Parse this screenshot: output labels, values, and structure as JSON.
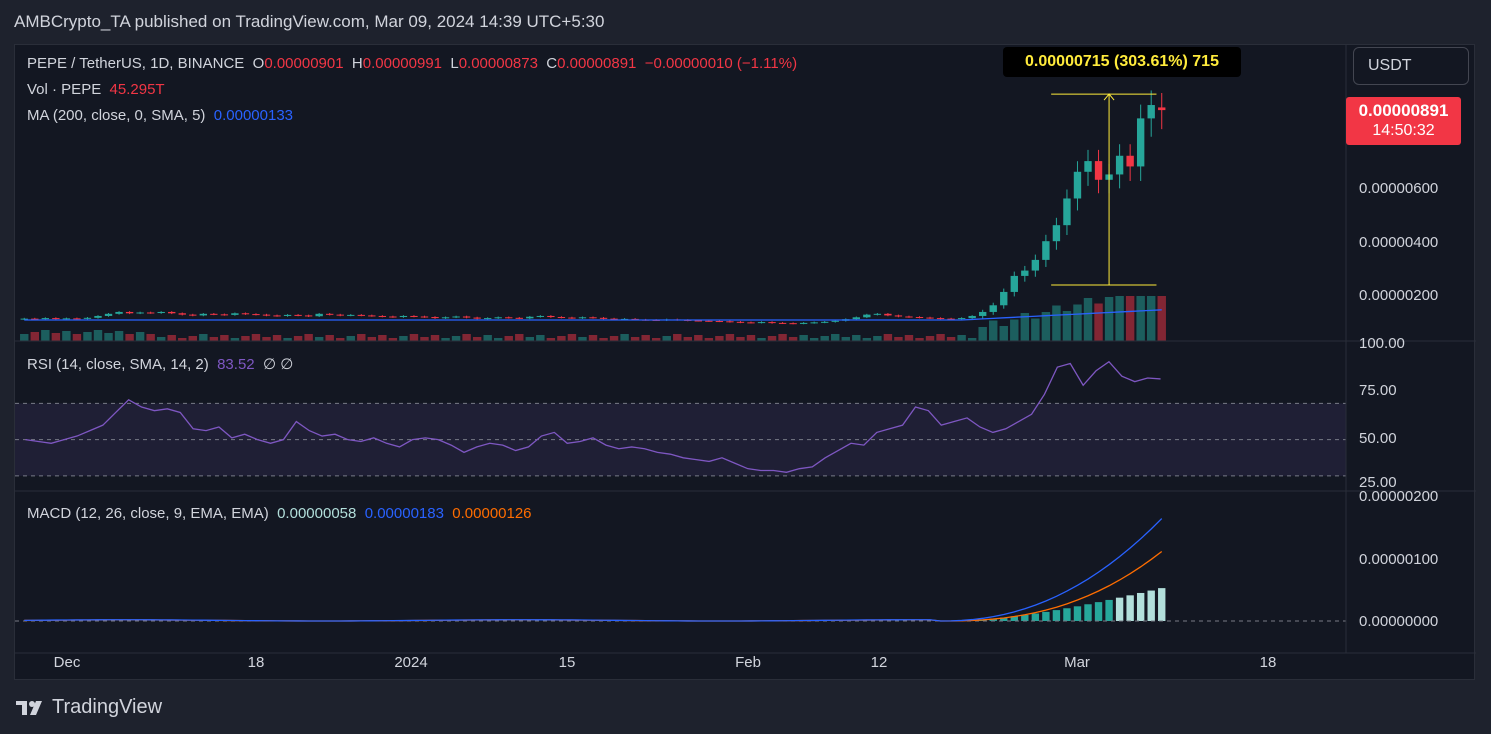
{
  "credit": "AMBCrypto_TA published on TradingView.com, Mar 09, 2024 14:39 UTC+5:30",
  "main_legend": {
    "symbol": "PEPE / TetherUS, 1D, BINANCE",
    "o_label": "O",
    "o": "0.00000901",
    "h_label": "H",
    "h": "0.00000991",
    "l_label": "L",
    "l": "0.00000873",
    "c_label": "C",
    "c": "0.00000891",
    "change": "−0.00000010 (−1.11%)"
  },
  "vol_legend": {
    "label": "Vol · PEPE",
    "value": "45.295T"
  },
  "ma_legend": {
    "label": "MA (200, close, 0, SMA, 5)",
    "value": "0.00000133"
  },
  "rsi_legend": {
    "label": "RSI (14, close, SMA, 14, 2)",
    "value": "83.52",
    "extra": "∅  ∅"
  },
  "macd_legend": {
    "label": "MACD (12, 26, close, 9, EMA, EMA)",
    "v1": "0.00000058",
    "v2": "0.00000183",
    "v3": "0.00000126"
  },
  "currency_button": "USDT",
  "price_tag": {
    "price": "0.00000891",
    "countdown": "14:50:32"
  },
  "measure": "0.00000715 (303.61%) 715",
  "price_axis": [
    "0.00000600",
    "0.00000400",
    "0.00000200"
  ],
  "rsi_axis": [
    "100.00",
    "75.00",
    "50.00",
    "25.00"
  ],
  "macd_axis": [
    "0.00000200",
    "0.00000100",
    "0.00000000"
  ],
  "time_axis": [
    "Dec",
    "18",
    "2024",
    "15",
    "Feb",
    "12",
    "Mar",
    "18"
  ],
  "footer_brand": "TradingView",
  "colors": {
    "up": "#26a69a",
    "down": "#f23645",
    "ma": "#2962ff",
    "rsi": "#7e57c2",
    "macd": "#2962ff",
    "signal": "#ff6d00",
    "measure": "#ffeb3b"
  },
  "chart_data": {
    "type": "candlestick",
    "series_close": [
      1.1,
      1.08,
      1.12,
      1.09,
      1.11,
      1.1,
      1.13,
      1.2,
      1.28,
      1.35,
      1.3,
      1.33,
      1.31,
      1.35,
      1.3,
      1.25,
      1.22,
      1.28,
      1.26,
      1.24,
      1.3,
      1.27,
      1.25,
      1.22,
      1.2,
      1.24,
      1.22,
      1.19,
      1.28,
      1.25,
      1.22,
      1.24,
      1.22,
      1.2,
      1.18,
      1.16,
      1.2,
      1.18,
      1.16,
      1.12,
      1.15,
      1.18,
      1.14,
      1.1,
      1.12,
      1.15,
      1.13,
      1.11,
      1.17,
      1.2,
      1.16,
      1.14,
      1.12,
      1.15,
      1.13,
      1.1,
      1.08,
      1.09,
      1.06,
      1.05,
      1.04,
      1.07,
      1.05,
      1.03,
      1.02,
      1.01,
      1.0,
      0.98,
      0.96,
      0.95,
      0.97,
      0.94,
      0.93,
      0.92,
      0.94,
      0.96,
      0.98,
      1.02,
      1.08,
      1.15,
      1.25,
      1.28,
      1.22,
      1.18,
      1.16,
      1.14,
      1.12,
      1.1,
      1.09,
      1.12,
      1.2,
      1.35,
      1.6,
      2.1,
      2.7,
      2.9,
      3.3,
      4.0,
      4.6,
      5.6,
      6.6,
      7.0,
      6.3,
      6.5,
      7.2,
      6.8,
      8.6,
      9.1,
      8.91
    ],
    "rsi": [
      50,
      49,
      48,
      50,
      52,
      55,
      58,
      65,
      72,
      68,
      66,
      67,
      65,
      56,
      55,
      57,
      51,
      53,
      50,
      48,
      50,
      60,
      55,
      52,
      53,
      50,
      49,
      51,
      48,
      46,
      50,
      51,
      50,
      47,
      43,
      46,
      48,
      47,
      44,
      46,
      52,
      54,
      48,
      49,
      51,
      47,
      45,
      46,
      45,
      43,
      42,
      40,
      39,
      38,
      40,
      37,
      34,
      33,
      33,
      32,
      34,
      35,
      40,
      44,
      48,
      47,
      54,
      56,
      58,
      68,
      66,
      58,
      60,
      62,
      57,
      54,
      56,
      60,
      64,
      75,
      90,
      92,
      80,
      88,
      93,
      85,
      82,
      84,
      83.5
    ],
    "macd_note": "MACD rising sharply in March with signal line below",
    "price_ticks": [
      "0.00000600",
      "0.00000400",
      "0.00000200"
    ],
    "measure_low": 2.36e-06,
    "measure_high": 9.51e-06,
    "measure_change_pct": "303.61%"
  }
}
